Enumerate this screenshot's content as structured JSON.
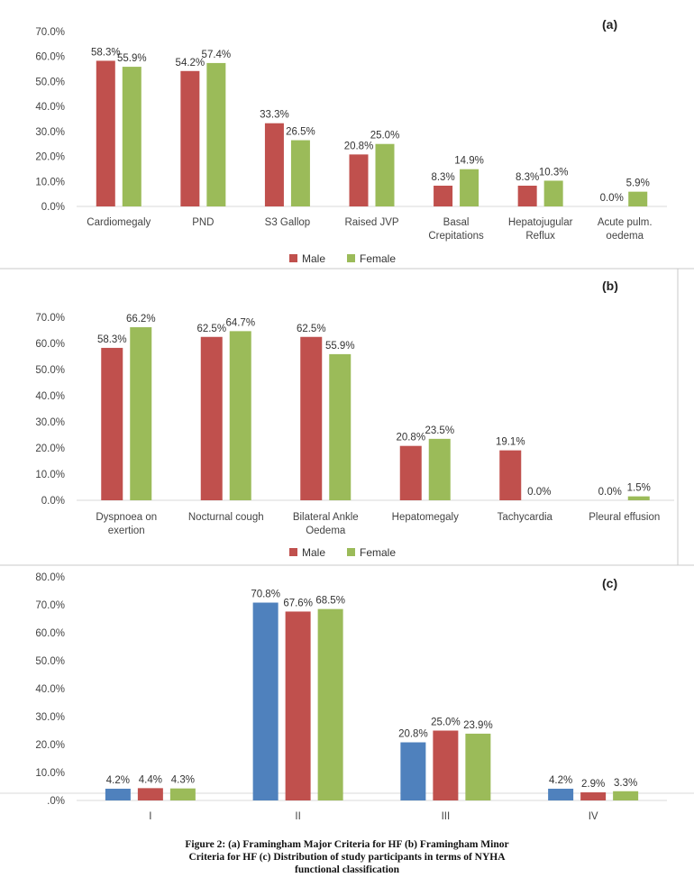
{
  "chart_data": [
    {
      "type": "bar",
      "panel_label": "(a)",
      "title": "",
      "categories": [
        [
          "Cardiomegaly"
        ],
        [
          "PND"
        ],
        [
          "S3 Gallop"
        ],
        [
          "Raised JVP"
        ],
        [
          "Basal",
          "Crepitations"
        ],
        [
          "Hepatojugular",
          "Reflux"
        ],
        [
          "Acute pulm.",
          "oedema"
        ]
      ],
      "series": [
        {
          "name": "Male",
          "color": "#C0504D",
          "values": [
            58.3,
            54.2,
            33.3,
            20.8,
            8.3,
            8.3,
            0.0
          ],
          "labels": [
            "58.3%",
            "54.2%",
            "33.3%",
            "20.8%",
            "8.3%",
            "8.3%",
            "0.0%"
          ]
        },
        {
          "name": "Female",
          "color": "#9BBB59",
          "values": [
            55.9,
            57.4,
            26.5,
            25.0,
            14.9,
            10.3,
            5.9
          ],
          "labels": [
            "55.9%",
            "57.4%",
            "26.5%",
            "25.0%",
            "14.9%",
            "10.3%",
            "5.9%"
          ]
        }
      ],
      "ylim": [
        0,
        70
      ],
      "yticks": [
        "0.0%",
        "10.0%",
        "20.0%",
        "30.0%",
        "40.0%",
        "50.0%",
        "60.0%",
        "70.0%"
      ],
      "legend": [
        "Male",
        "Female"
      ],
      "legend_position": "bottom"
    },
    {
      "type": "bar",
      "panel_label": "(b)",
      "title": "",
      "categories": [
        [
          "Dyspnoea on",
          "exertion"
        ],
        [
          "Nocturnal cough"
        ],
        [
          "Bilateral Ankle",
          "Oedema"
        ],
        [
          "Hepatomegaly"
        ],
        [
          "Tachycardia"
        ],
        [
          "Pleural effusion"
        ]
      ],
      "series": [
        {
          "name": "Male",
          "color": "#C0504D",
          "values": [
            58.3,
            62.5,
            62.5,
            20.8,
            19.1,
            0.0
          ],
          "labels": [
            "58.3%",
            "62.5%",
            "62.5%",
            "20.8%",
            "19.1%",
            "0.0%"
          ]
        },
        {
          "name": "Female",
          "color": "#9BBB59",
          "values": [
            66.2,
            64.7,
            55.9,
            23.5,
            0.0,
            1.5
          ],
          "labels": [
            "66.2%",
            "64.7%",
            "55.9%",
            "23.5%",
            "0.0%",
            "1.5%"
          ]
        }
      ],
      "ylim": [
        0,
        70
      ],
      "yticks": [
        "0.0%",
        "10.0%",
        "20.0%",
        "30.0%",
        "40.0%",
        "50.0%",
        "60.0%",
        "70.0%"
      ],
      "legend": [
        "Male",
        "Female"
      ],
      "legend_position": "bottom"
    },
    {
      "type": "bar",
      "panel_label": "(c)",
      "title": "",
      "categories": [
        [
          "I"
        ],
        [
          "II"
        ],
        [
          "III"
        ],
        [
          "IV"
        ]
      ],
      "series": [
        {
          "name": "",
          "color": "#4F81BD",
          "values": [
            4.2,
            70.8,
            20.8,
            4.2
          ],
          "labels": [
            "4.2%",
            "70.8%",
            "20.8%",
            "4.2%"
          ]
        },
        {
          "name": "",
          "color": "#C0504D",
          "values": [
            4.4,
            67.6,
            25.0,
            2.9
          ],
          "labels": [
            "4.4%",
            "67.6%",
            "25.0%",
            "2.9%"
          ]
        },
        {
          "name": "",
          "color": "#9BBB59",
          "values": [
            4.3,
            68.5,
            23.9,
            3.3
          ],
          "labels": [
            "4.3%",
            "68.5%",
            "23.9%",
            "3.3%"
          ]
        }
      ],
      "ylim": [
        0,
        80
      ],
      "yticks": [
        ".0%",
        "10.0%",
        "20.0%",
        "30.0%",
        "40.0%",
        "50.0%",
        "60.0%",
        "70.0%",
        "80.0%"
      ],
      "legend": [],
      "legend_position": "none"
    }
  ],
  "caption": [
    "Figure 2: (a) Framingham Major Criteria for HF (b) Framingham Minor",
    "Criteria for HF (c) Distribution of study participants in terms of NYHA",
    "functional classification"
  ]
}
